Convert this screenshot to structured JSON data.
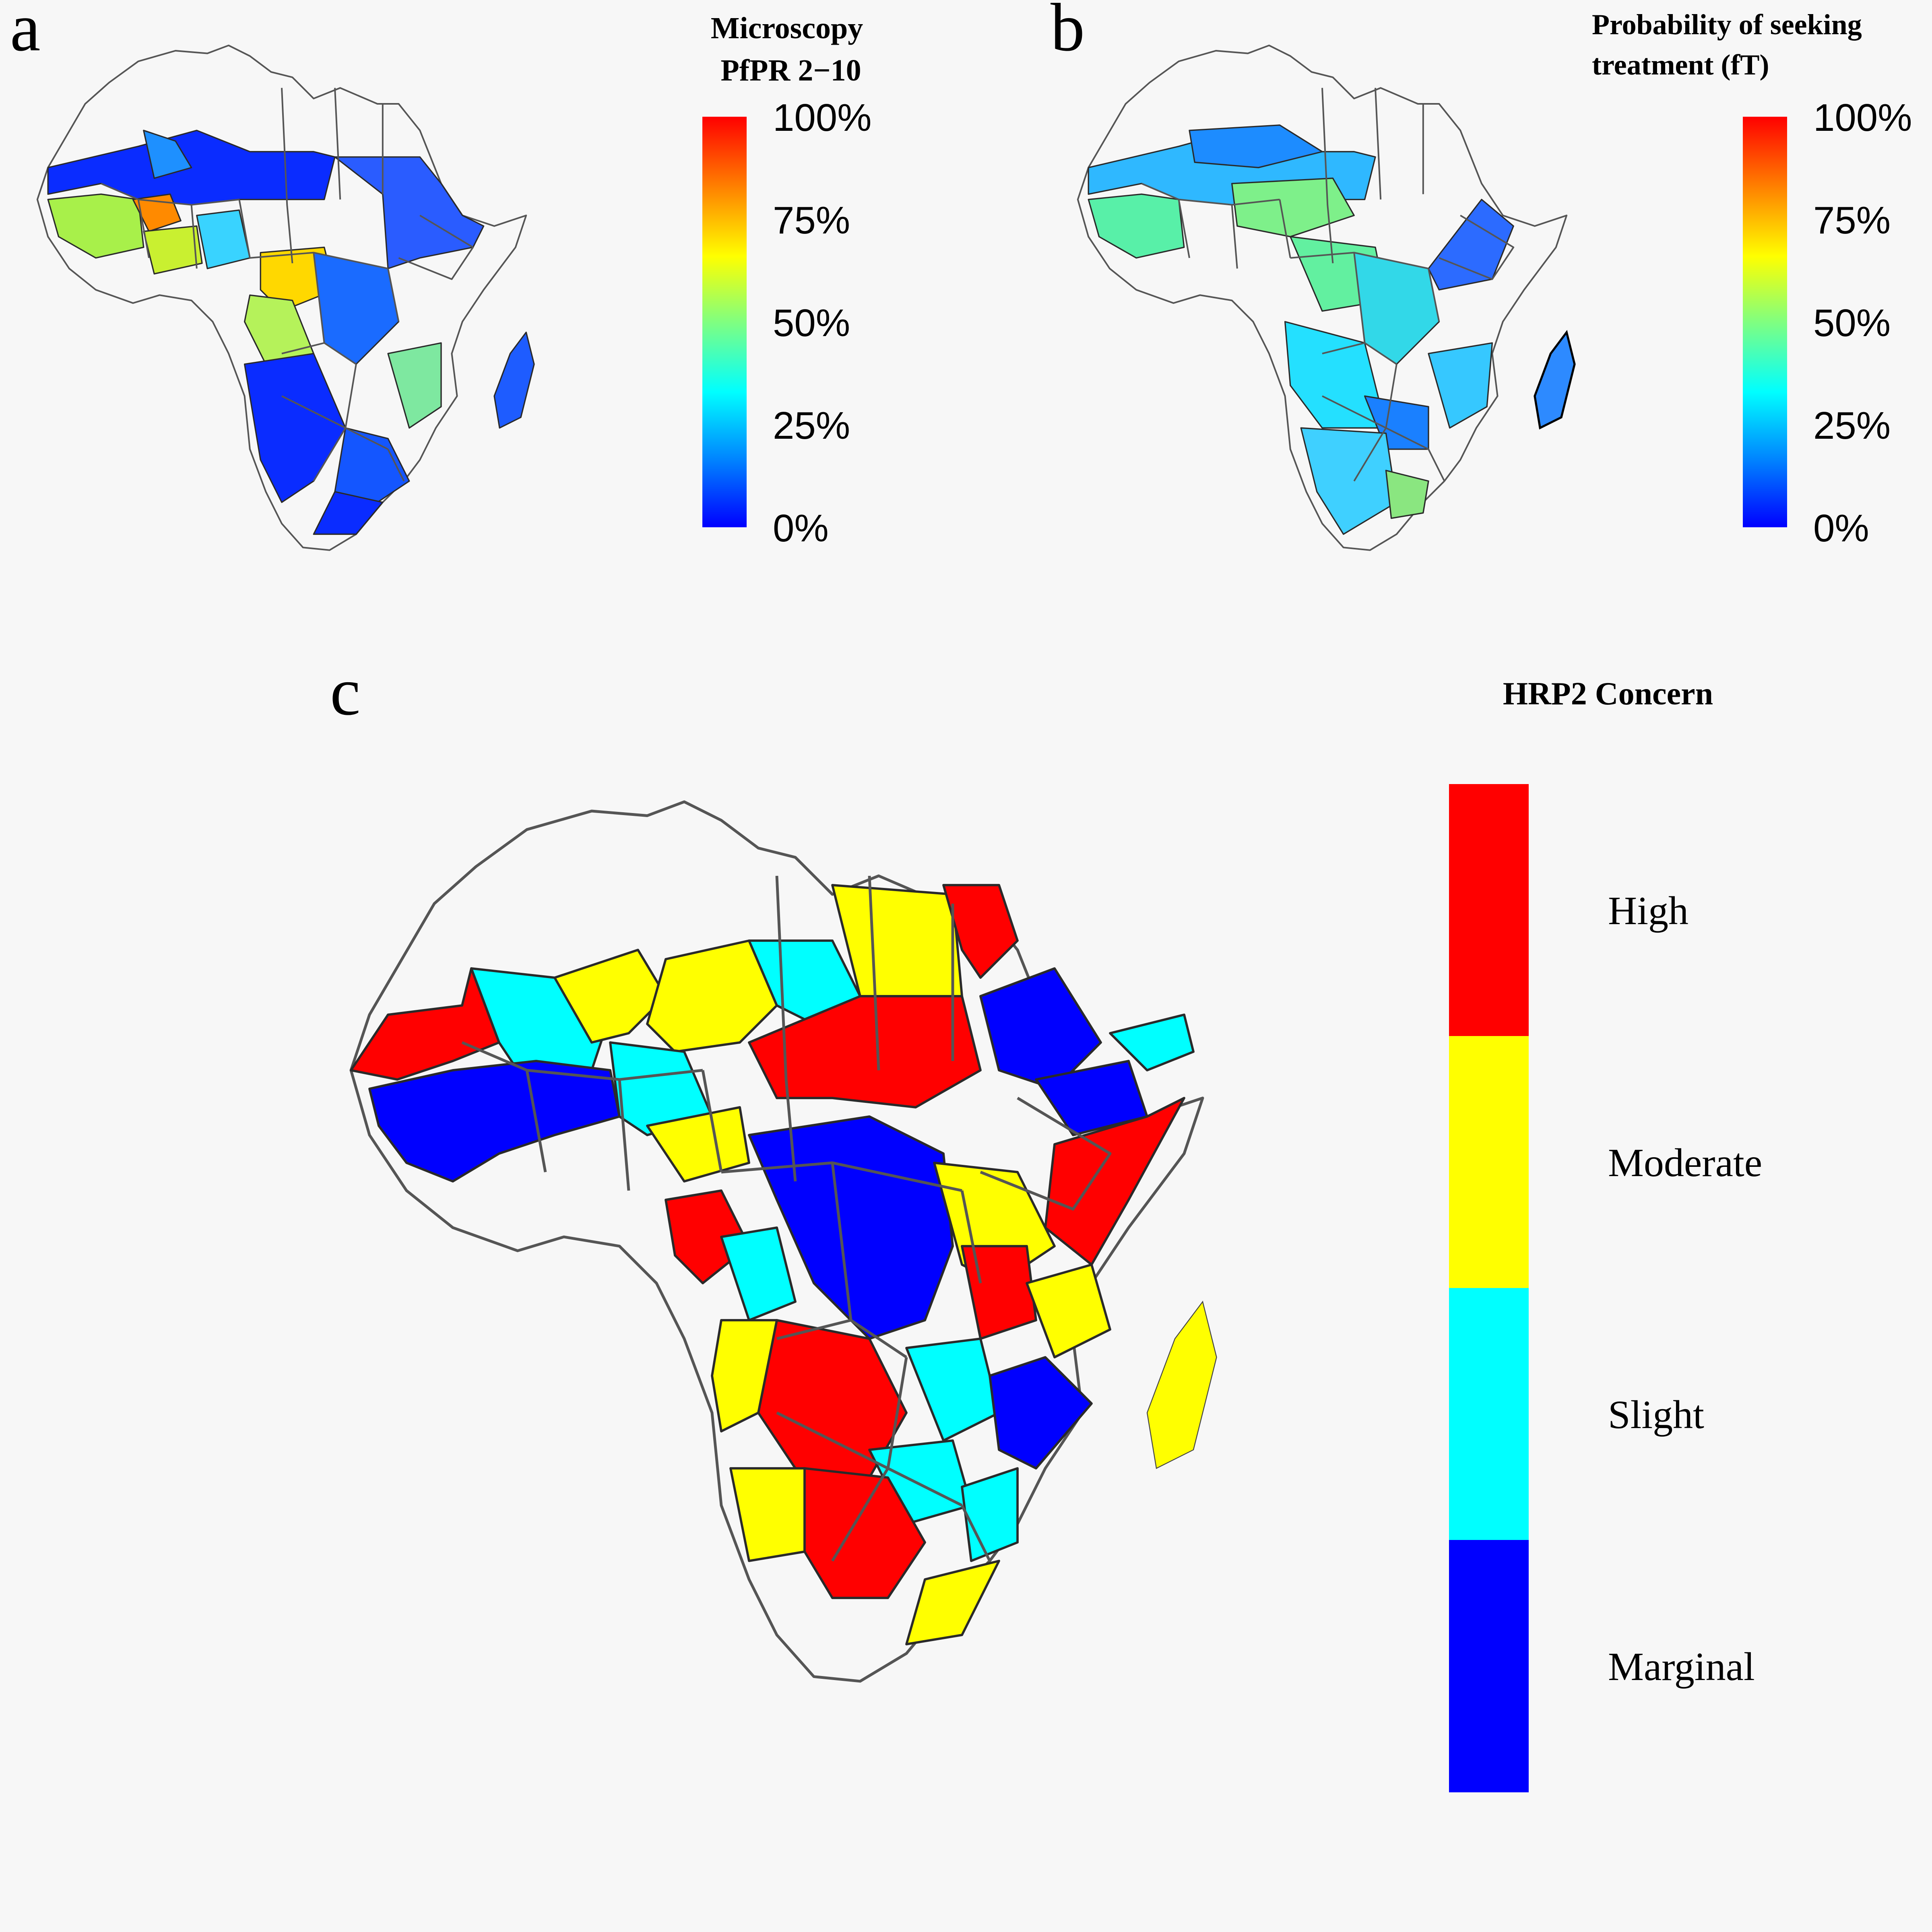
{
  "panels": {
    "a": {
      "letter": "a",
      "legend_title_lines": [
        "Microscopy",
        "PfPR 2−10"
      ],
      "colorbar": {
        "type": "continuous",
        "palette": [
          "#0000ff",
          "#0080ff",
          "#00ffff",
          "#80ff80",
          "#ffff00",
          "#ff8000",
          "#ff0000"
        ],
        "ticks": [
          "100%",
          "75%",
          "50%",
          "25%",
          "0%"
        ]
      }
    },
    "b": {
      "letter": "b",
      "legend_title_lines": [
        "Probability of seeking",
        "treatment (fT)"
      ],
      "colorbar": {
        "type": "continuous",
        "palette": [
          "#0000ff",
          "#0080ff",
          "#00ffff",
          "#80ff80",
          "#ffff00",
          "#ff8000",
          "#ff0000"
        ],
        "ticks": [
          "100%",
          "75%",
          "50%",
          "25%",
          "0%"
        ]
      }
    },
    "c": {
      "letter": "c",
      "legend_title": "HRP2 Concern",
      "categories": [
        {
          "label": "High",
          "color": "#ff0000"
        },
        {
          "label": "Moderate",
          "color": "#ffff00"
        },
        {
          "label": "Slight",
          "color": "#00ffff"
        },
        {
          "label": "Marginal",
          "color": "#0000ff"
        }
      ]
    }
  }
}
